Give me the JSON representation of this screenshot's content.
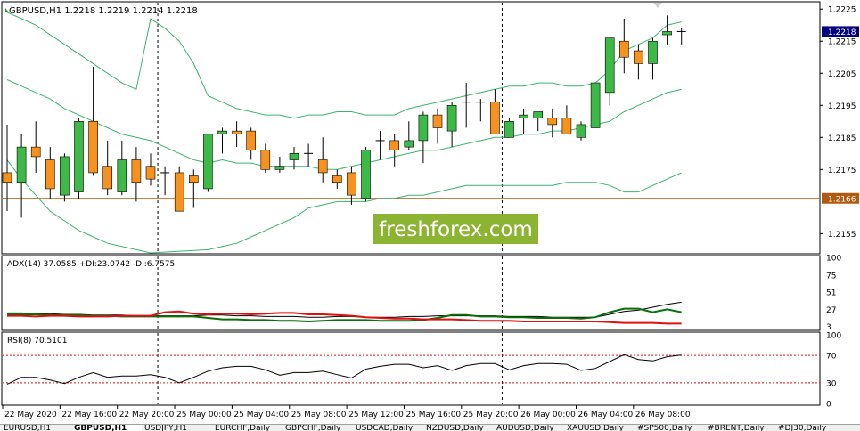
{
  "window": {
    "header_text": "GBPUSD,H1  1.2218 1.2219 1.2214 1.2218",
    "symbol_timeframe": "GBPUSD,H1",
    "ohlc": [
      "1.2218",
      "1.2219",
      "1.2214",
      "1.2218"
    ]
  },
  "watermark": {
    "text": "freshforex.com",
    "bg_color": "#8db332",
    "text_color": "#ffffff"
  },
  "colors": {
    "bull_candle": "#3cb947",
    "bear_candle": "#f7921e",
    "bollinger": "#3cb371",
    "horizontal_line": "#b05a10",
    "price_label_bg": "#000080",
    "hline_label_bg": "#b05a10",
    "adx_main": "#000000",
    "plus_di": "#0a6e0a",
    "minus_di": "#e01010",
    "rsi_line": "#000000",
    "rsi_levels": "#e01010"
  },
  "main_chart": {
    "y_ticks": [
      "1.2225",
      "1.2215",
      "1.2205",
      "1.2195",
      "1.2185",
      "1.2175",
      "1.2155"
    ],
    "current_price_label": "1.2218",
    "hline_label": "1.2166",
    "ylim": [
      1.2149,
      1.2227
    ]
  },
  "chart_data": {
    "type": "candlestick",
    "symbol": "GBPUSD",
    "timeframe": "H1",
    "candles": [
      {
        "o": 1.2174,
        "h": 1.2189,
        "l": 1.2162,
        "c": 1.2171
      },
      {
        "o": 1.2171,
        "h": 1.2186,
        "l": 1.216,
        "c": 1.2182
      },
      {
        "o": 1.2182,
        "h": 1.219,
        "l": 1.2174,
        "c": 1.2179
      },
      {
        "o": 1.2178,
        "h": 1.2182,
        "l": 1.2166,
        "c": 1.2169
      },
      {
        "o": 1.2167,
        "h": 1.218,
        "l": 1.2165,
        "c": 1.2179
      },
      {
        "o": 1.2168,
        "h": 1.2191,
        "l": 1.2166,
        "c": 1.219
      },
      {
        "o": 1.219,
        "h": 1.2207,
        "l": 1.2173,
        "c": 1.2174
      },
      {
        "o": 1.2176,
        "h": 1.2184,
        "l": 1.2167,
        "c": 1.2169
      },
      {
        "o": 1.2168,
        "h": 1.2184,
        "l": 1.2167,
        "c": 1.2178
      },
      {
        "o": 1.2178,
        "h": 1.2182,
        "l": 1.2165,
        "c": 1.2171
      },
      {
        "o": 1.2176,
        "h": 1.218,
        "l": 1.217,
        "c": 1.2172
      },
      {
        "o": 1.2174,
        "h": 1.2176,
        "l": 1.2167,
        "c": 1.2174
      },
      {
        "o": 1.2174,
        "h": 1.2176,
        "l": 1.2162,
        "c": 1.2162
      },
      {
        "o": 1.2173,
        "h": 1.2175,
        "l": 1.2163,
        "c": 1.2171
      },
      {
        "o": 1.2169,
        "h": 1.2186,
        "l": 1.2168,
        "c": 1.2186
      },
      {
        "o": 1.2186,
        "h": 1.2188,
        "l": 1.218,
        "c": 1.2187
      },
      {
        "o": 1.2187,
        "h": 1.219,
        "l": 1.2182,
        "c": 1.2186
      },
      {
        "o": 1.2187,
        "h": 1.2188,
        "l": 1.2178,
        "c": 1.2181
      },
      {
        "o": 1.2181,
        "h": 1.2183,
        "l": 1.2174,
        "c": 1.2175
      },
      {
        "o": 1.2175,
        "h": 1.2179,
        "l": 1.2174,
        "c": 1.2176
      },
      {
        "o": 1.2178,
        "h": 1.2182,
        "l": 1.2175,
        "c": 1.218
      },
      {
        "o": 1.218,
        "h": 1.2183,
        "l": 1.2176,
        "c": 1.218
      },
      {
        "o": 1.2178,
        "h": 1.2185,
        "l": 1.2171,
        "c": 1.2174
      },
      {
        "o": 1.2173,
        "h": 1.2175,
        "l": 1.2169,
        "c": 1.2171
      },
      {
        "o": 1.2174,
        "h": 1.2176,
        "l": 1.2164,
        "c": 1.2167
      },
      {
        "o": 1.2166,
        "h": 1.2182,
        "l": 1.2165,
        "c": 1.2181
      },
      {
        "o": 1.2184,
        "h": 1.2187,
        "l": 1.2178,
        "c": 1.2184
      },
      {
        "o": 1.2184,
        "h": 1.2186,
        "l": 1.2176,
        "c": 1.2181
      },
      {
        "o": 1.2182,
        "h": 1.219,
        "l": 1.2181,
        "c": 1.2184
      },
      {
        "o": 1.2184,
        "h": 1.2193,
        "l": 1.2177,
        "c": 1.2192
      },
      {
        "o": 1.2192,
        "h": 1.2194,
        "l": 1.2183,
        "c": 1.2188
      },
      {
        "o": 1.2187,
        "h": 1.2196,
        "l": 1.2182,
        "c": 1.2195
      },
      {
        "o": 1.2196,
        "h": 1.2202,
        "l": 1.2188,
        "c": 1.2196
      },
      {
        "o": 1.2196,
        "h": 1.2197,
        "l": 1.219,
        "c": 1.2196
      },
      {
        "o": 1.2196,
        "h": 1.22,
        "l": 1.2186,
        "c": 1.2186
      },
      {
        "o": 1.2185,
        "h": 1.2191,
        "l": 1.2185,
        "c": 1.219
      },
      {
        "o": 1.2191,
        "h": 1.2194,
        "l": 1.2186,
        "c": 1.2192
      },
      {
        "o": 1.2191,
        "h": 1.2193,
        "l": 1.2187,
        "c": 1.2193
      },
      {
        "o": 1.2191,
        "h": 1.2194,
        "l": 1.2185,
        "c": 1.2189
      },
      {
        "o": 1.2191,
        "h": 1.2195,
        "l": 1.2186,
        "c": 1.2186
      },
      {
        "o": 1.2185,
        "h": 1.219,
        "l": 1.2184,
        "c": 1.2189
      },
      {
        "o": 1.2188,
        "h": 1.2202,
        "l": 1.2188,
        "c": 1.2202
      },
      {
        "o": 1.2199,
        "h": 1.2216,
        "l": 1.2195,
        "c": 1.2216
      },
      {
        "o": 1.2215,
        "h": 1.2222,
        "l": 1.2205,
        "c": 1.221
      },
      {
        "o": 1.2212,
        "h": 1.2214,
        "l": 1.2203,
        "c": 1.2208
      },
      {
        "o": 1.2208,
        "h": 1.2216,
        "l": 1.2203,
        "c": 1.2215
      },
      {
        "o": 1.2217,
        "h": 1.2223,
        "l": 1.2214,
        "c": 1.2218
      },
      {
        "o": 1.2218,
        "h": 1.2219,
        "l": 1.2214,
        "c": 1.2218
      }
    ],
    "bollinger_upper": [
      1.2224,
      1.2222,
      1.222,
      1.2217,
      1.2214,
      1.2211,
      1.2208,
      1.2205,
      1.2202,
      1.22,
      1.2222,
      1.2219,
      1.2215,
      1.2208,
      1.2198,
      1.2196,
      1.2194,
      1.2193,
      1.2192,
      1.2192,
      1.2191,
      1.2192,
      1.2192,
      1.2193,
      1.2193,
      1.2192,
      1.2192,
      1.2192,
      1.2194,
      1.2195,
      1.2196,
      1.2197,
      1.2198,
      1.2199,
      1.22,
      1.2201,
      1.2201,
      1.2202,
      1.2202,
      1.2201,
      1.2201,
      1.2202,
      1.2206,
      1.2212,
      1.2214,
      1.2216,
      1.222,
      1.2221
    ],
    "bollinger_middle": [
      1.2203,
      1.2201,
      1.2199,
      1.2197,
      1.2194,
      1.2192,
      1.219,
      1.2188,
      1.2186,
      1.2185,
      1.2184,
      1.2182,
      1.218,
      1.2178,
      1.2177,
      1.2178,
      1.2177,
      1.2177,
      1.2176,
      1.2176,
      1.2176,
      1.2176,
      1.2175,
      1.2175,
      1.2176,
      1.2177,
      1.2178,
      1.2179,
      1.218,
      1.2181,
      1.2181,
      1.2182,
      1.2183,
      1.2184,
      1.2185,
      1.2185,
      1.2186,
      1.2186,
      1.2187,
      1.2187,
      1.2188,
      1.2189,
      1.219,
      1.2193,
      1.2195,
      1.2197,
      1.2199,
      1.22
    ],
    "bollinger_lower": [
      1.2178,
      1.2172,
      1.2167,
      1.2162,
      1.2159,
      1.2156,
      1.2154,
      1.2152,
      1.2151,
      1.215,
      1.2149,
      1.2148,
      1.2147,
      1.2148,
      1.215,
      1.2151,
      1.2152,
      1.2154,
      1.2156,
      1.2158,
      1.216,
      1.2163,
      1.2164,
      1.2165,
      1.2165,
      1.2165,
      1.2166,
      1.2166,
      1.2167,
      1.2167,
      1.2168,
      1.2169,
      1.217,
      1.217,
      1.217,
      1.217,
      1.217,
      1.217,
      1.217,
      1.2171,
      1.2171,
      1.2171,
      1.217,
      1.2168,
      1.2168,
      1.217,
      1.2172,
      1.2174
    ],
    "horizontal_level": 1.2166,
    "separator_candle_indices": [
      11,
      35
    ],
    "time_labels": [
      "22 May 2020",
      "22 May 16:00",
      "22 May 20:00",
      "25 May 00:00",
      "25 May 04:00",
      "25 May 08:00",
      "25 May 12:00",
      "25 May 16:00",
      "25 May 20:00",
      "26 May 00:00",
      "26 May 04:00",
      "26 May 08:00"
    ],
    "adx": {
      "label": "ADX(14) 37.0585 +DI:23.0742 -DI:6.7575",
      "ticks": [
        "100",
        "75",
        "51",
        "27",
        "3"
      ],
      "ylim": [
        0,
        100
      ],
      "adx_values": [
        22,
        22,
        21,
        21,
        20,
        20,
        19,
        19,
        19,
        18,
        18,
        18,
        18,
        18,
        19,
        19,
        18,
        18,
        17,
        17,
        17,
        16,
        16,
        17,
        17,
        16,
        16,
        16,
        17,
        17,
        18,
        18,
        18,
        18,
        18,
        17,
        17,
        17,
        16,
        16,
        16,
        16,
        20,
        24,
        26,
        30,
        34,
        37
      ],
      "plus_di_values": [
        20,
        20,
        20,
        19,
        19,
        19,
        18,
        18,
        17,
        17,
        17,
        17,
        17,
        17,
        15,
        13,
        13,
        12,
        12,
        11,
        11,
        10,
        11,
        12,
        12,
        12,
        11,
        11,
        11,
        12,
        15,
        19,
        19,
        17,
        17,
        16,
        16,
        15,
        15,
        15,
        14,
        16,
        23,
        28,
        28,
        23,
        27,
        23
      ],
      "minus_di_values": [
        18,
        18,
        17,
        18,
        18,
        17,
        17,
        17,
        18,
        18,
        18,
        23,
        24,
        21,
        20,
        21,
        21,
        20,
        21,
        22,
        22,
        20,
        20,
        19,
        18,
        16,
        15,
        14,
        14,
        13,
        13,
        13,
        12,
        11,
        11,
        11,
        10,
        10,
        10,
        10,
        10,
        10,
        9,
        8,
        8,
        8,
        7,
        7
      ]
    },
    "rsi": {
      "label": "RSI(8) 70.5101",
      "ticks": [
        "100",
        "70",
        "30",
        "0"
      ],
      "levels": [
        70,
        30
      ],
      "ylim": [
        0,
        100
      ],
      "values": [
        28,
        38,
        38,
        34,
        29,
        38,
        45,
        38,
        40,
        40,
        42,
        38,
        30,
        38,
        47,
        52,
        54,
        54,
        49,
        41,
        45,
        45,
        47,
        42,
        37,
        50,
        54,
        57,
        57,
        52,
        55,
        48,
        55,
        58,
        58,
        49,
        55,
        58,
        58,
        57,
        48,
        51,
        61,
        71,
        64,
        62,
        68,
        70.5
      ]
    }
  },
  "tabs": [
    "EURUSD,H1",
    "GBPUSD,H1",
    "USDJPY,H1",
    "EURCHF,Daily",
    "GBPCHF,Daily",
    "USDCAD,Daily",
    "NZDUSD,Daily",
    "AUDUSD,Daily",
    "XAUUSD,Daily",
    "#SP500,Daily",
    "#BRENT,Daily",
    "#DJ30,Daily"
  ]
}
